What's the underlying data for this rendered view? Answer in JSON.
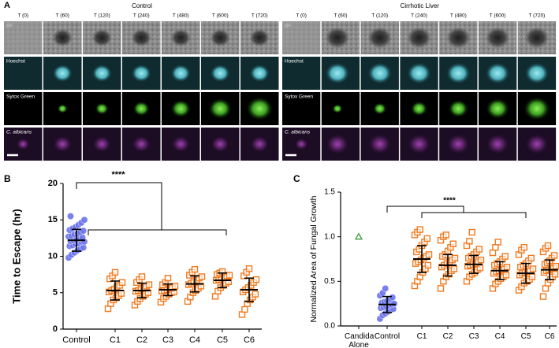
{
  "panel_labels": [
    "A",
    "B",
    "C"
  ],
  "panel_a": {
    "panels": [
      {
        "title": "Control",
        "columns": [
          "T (0)",
          "T (60)",
          "T (120)",
          "T (240)",
          "T (480)",
          "T (600)",
          "T (720)"
        ],
        "rows": [
          "BF",
          "Hoechst",
          "Sytox Green",
          "C. albicans"
        ]
      },
      {
        "title": "Cirrhotic Liver",
        "columns": [
          "T (0)",
          "T (60)",
          "T (120)",
          "T (240)",
          "T (480)",
          "T (600)",
          "T (720)"
        ],
        "rows": [
          "BF",
          "Hoechst",
          "Sytox Green",
          "C. albicans"
        ]
      }
    ]
  },
  "chart_data": [
    {
      "type": "scatter",
      "y_label": "Time to Escape (hr)",
      "annotation": "****",
      "categories": [
        "Control",
        "C1",
        "C2",
        "C3",
        "C4",
        "C5",
        "C6"
      ],
      "colors": [
        "#6b74ea",
        "#f07a1f",
        "#f07a1f",
        "#f07a1f",
        "#f07a1f",
        "#f07a1f",
        "#f07a1f"
      ],
      "markers": [
        "circle",
        "square",
        "square",
        "square",
        "square",
        "square",
        "square"
      ],
      "points": [
        [
          9.8,
          10.2,
          10.5,
          10.8,
          11.0,
          11.2,
          11.4,
          11.5,
          11.7,
          11.8,
          12.0,
          12.0,
          12.1,
          12.2,
          12.3,
          12.5,
          12.6,
          12.7,
          12.8,
          13.0,
          13.1,
          13.3,
          13.5,
          13.6,
          13.8,
          14.0,
          14.3,
          14.6,
          15.0,
          15.5
        ],
        [
          2.8,
          3.5,
          4.0,
          4.3,
          4.6,
          4.9,
          5.1,
          5.3,
          5.5,
          5.8,
          6.0,
          6.4,
          6.9,
          7.3,
          7.8
        ],
        [
          3.3,
          3.8,
          4.2,
          4.5,
          4.8,
          5.0,
          5.2,
          5.3,
          5.5,
          5.7,
          5.9,
          6.1,
          6.4,
          6.8,
          7.2
        ],
        [
          3.7,
          4.2,
          4.5,
          4.8,
          5.0,
          5.1,
          5.2,
          5.3,
          5.4,
          5.6,
          5.7,
          5.9,
          6.1,
          6.4,
          7.0
        ],
        [
          3.8,
          4.4,
          5.0,
          5.3,
          5.6,
          5.9,
          6.1,
          6.3,
          6.5,
          6.7,
          7.0,
          7.2,
          7.4,
          7.8,
          8.2
        ],
        [
          4.5,
          5.2,
          5.7,
          6.0,
          6.3,
          6.5,
          6.7,
          6.8,
          7.0,
          7.1,
          7.3,
          7.4,
          7.5,
          7.7,
          7.9
        ],
        [
          2.0,
          2.7,
          3.5,
          4.0,
          4.4,
          4.8,
          5.1,
          5.4,
          5.7,
          6.0,
          6.4,
          6.8,
          7.3,
          7.8,
          8.3
        ]
      ],
      "means": [
        12.2,
        5.3,
        5.3,
        5.4,
        6.2,
        6.7,
        5.4
      ],
      "sds": [
        1.5,
        1.3,
        1.0,
        0.8,
        1.1,
        1.0,
        1.6
      ],
      "ylim": [
        0,
        20
      ],
      "yticks": [
        0,
        5,
        10,
        15,
        20
      ]
    },
    {
      "type": "scatter",
      "y_label": "Normalized Area of Fungal Growth",
      "annotation": "****",
      "categories": [
        "Candida Alone",
        "Control",
        "C1",
        "C2",
        "C3",
        "C4",
        "C5",
        "C6"
      ],
      "colors": [
        "#3a9a3a",
        "#6b74ea",
        "#f07a1f",
        "#f07a1f",
        "#f07a1f",
        "#f07a1f",
        "#f07a1f",
        "#f07a1f"
      ],
      "markers": [
        "triangle",
        "circle",
        "square",
        "square",
        "square",
        "square",
        "square",
        "square"
      ],
      "points": [
        [
          1.0
        ],
        [
          0.08,
          0.12,
          0.14,
          0.16,
          0.18,
          0.19,
          0.2,
          0.21,
          0.22,
          0.23,
          0.24,
          0.25,
          0.26,
          0.27,
          0.28,
          0.3,
          0.32,
          0.34,
          0.37,
          0.42
        ],
        [
          0.45,
          0.5,
          0.55,
          0.6,
          0.64,
          0.68,
          0.7,
          0.72,
          0.74,
          0.76,
          0.78,
          0.8,
          0.83,
          0.86,
          0.9,
          0.94,
          0.98,
          1.02,
          1.05,
          1.08
        ],
        [
          0.42,
          0.5,
          0.55,
          0.58,
          0.62,
          0.64,
          0.66,
          0.68,
          0.7,
          0.72,
          0.74,
          0.76,
          0.78,
          0.8,
          0.84,
          0.88,
          0.92,
          0.96,
          1.0,
          1.02
        ],
        [
          0.5,
          0.55,
          0.58,
          0.6,
          0.63,
          0.65,
          0.67,
          0.68,
          0.69,
          0.7,
          0.72,
          0.74,
          0.76,
          0.78,
          0.8,
          0.83,
          0.86,
          0.9,
          0.95,
          1.05
        ],
        [
          0.42,
          0.47,
          0.5,
          0.53,
          0.55,
          0.57,
          0.59,
          0.61,
          0.62,
          0.63,
          0.64,
          0.66,
          0.68,
          0.7,
          0.72,
          0.75,
          0.78,
          0.82,
          0.88,
          0.94
        ],
        [
          0.4,
          0.44,
          0.48,
          0.5,
          0.52,
          0.55,
          0.57,
          0.59,
          0.6,
          0.61,
          0.62,
          0.64,
          0.66,
          0.68,
          0.7,
          0.73,
          0.76,
          0.8,
          0.85,
          0.88
        ],
        [
          0.33,
          0.42,
          0.48,
          0.52,
          0.55,
          0.58,
          0.6,
          0.62,
          0.63,
          0.64,
          0.65,
          0.67,
          0.69,
          0.71,
          0.73,
          0.76,
          0.79,
          0.83,
          0.87,
          0.9
        ]
      ],
      "means": [
        null,
        0.24,
        0.75,
        0.68,
        0.69,
        0.62,
        0.59,
        0.63
      ],
      "sds": [
        null,
        0.09,
        0.15,
        0.12,
        0.1,
        0.1,
        0.11,
        0.11
      ],
      "ylim": [
        0,
        1.5
      ],
      "yticks": [
        {
          "value": 0,
          "label": "0.0"
        },
        {
          "value": 0.5,
          "label": "0.5"
        },
        {
          "value": 1,
          "label": "1.0"
        },
        {
          "value": 1.5,
          "label": "1.5"
        }
      ]
    }
  ]
}
